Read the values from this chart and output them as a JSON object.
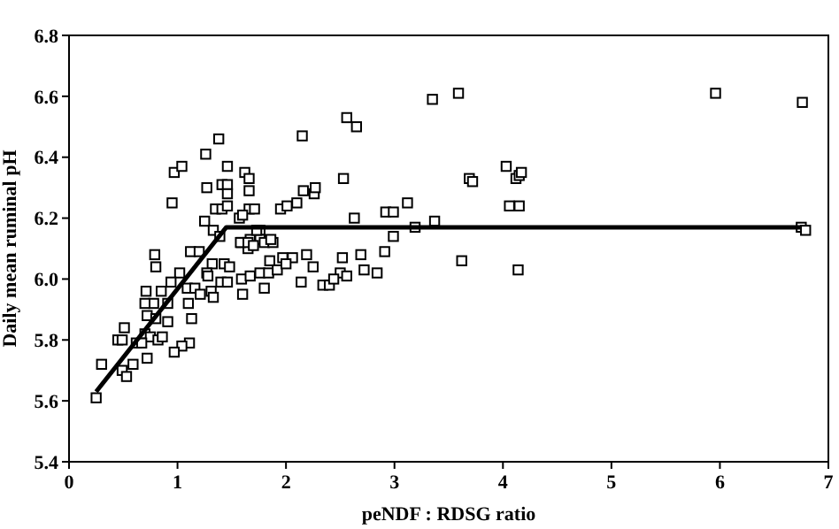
{
  "chart_data": {
    "type": "scatter",
    "xlabel": "peNDF : RDSG ratio",
    "ylabel": "Daily mean ruminal pH",
    "xlim": [
      0,
      7
    ],
    "xticks": [
      0,
      1,
      2,
      3,
      4,
      5,
      6,
      7
    ],
    "ylim": [
      5.4,
      6.8
    ],
    "yticks": [
      5.4,
      5.6,
      5.8,
      {
        "value": 6,
        "label": "6.0"
      },
      6.2,
      6.4,
      6.6,
      6.8
    ],
    "grid": false,
    "series": [
      {
        "color": "#000000",
        "marker": "square",
        "x": [
          2.56,
          2.65,
          3.35,
          3.59,
          2.53,
          2.63,
          2.92,
          2.99,
          3.12,
          3.19,
          3.37,
          2.99,
          2.52,
          2.69,
          2.91,
          2.5,
          2.56,
          2.72,
          2.84,
          3.62,
          4.14,
          3.69,
          3.72,
          4.03,
          4.12,
          4.15,
          4.17,
          4.06,
          4.15,
          5.96,
          6.76,
          6.75,
          6.79,
          1.38,
          2.15,
          1.26,
          0.97,
          1.04,
          1.46,
          1.27,
          1.41,
          1.46,
          1.46,
          1.62,
          1.66,
          1.66,
          0.95,
          1.35,
          1.41,
          1.46,
          1.25,
          1.66,
          1.71,
          1.57,
          1.6,
          1.95,
          2.01,
          2.1,
          2.16,
          2.26,
          2.27,
          1.76,
          1.33,
          1.39,
          1.76,
          1.8,
          1.88,
          1.67,
          1.59,
          1.65,
          1.12,
          1.2,
          1.32,
          1.43,
          1.85,
          1.97,
          2.06,
          2.19,
          1.73,
          1.58,
          1.65,
          1.7,
          1.86,
          1.27,
          1.28,
          1.48,
          1.4,
          1.46,
          1.59,
          1.67,
          1.76,
          1.84,
          1.92,
          2.0,
          2.14,
          2.25,
          2.34,
          2.4,
          2.44,
          1.6,
          1.8,
          1.02,
          1.09,
          1.16,
          1.21,
          1.31,
          1.33,
          0.94,
          0.71,
          0.85,
          0.78,
          0.7,
          0.91,
          1.1,
          0.72,
          0.8,
          1.13,
          0.91,
          0.51,
          0.7,
          0.75,
          0.62,
          0.67,
          0.82,
          0.86,
          0.45,
          0.49,
          1.11,
          1.04,
          0.97,
          0.72,
          0.3,
          0.49,
          0.59,
          0.53,
          0.25,
          0.8,
          0.79
        ],
        "values": [
          6.53,
          6.5,
          6.59,
          6.61,
          6.33,
          6.2,
          6.22,
          6.22,
          6.25,
          6.17,
          6.19,
          6.14,
          6.07,
          6.08,
          6.09,
          6.02,
          6.01,
          6.03,
          6.02,
          6.06,
          6.03,
          6.33,
          6.32,
          6.37,
          6.33,
          6.34,
          6.35,
          6.24,
          6.24,
          6.61,
          6.58,
          6.17,
          6.16,
          6.46,
          6.47,
          6.41,
          6.35,
          6.37,
          6.37,
          6.3,
          6.31,
          6.31,
          6.28,
          6.35,
          6.33,
          6.29,
          6.25,
          6.23,
          6.23,
          6.24,
          6.19,
          6.23,
          6.23,
          6.2,
          6.21,
          6.23,
          6.24,
          6.25,
          6.29,
          6.28,
          6.3,
          6.16,
          6.16,
          6.14,
          6.13,
          6.12,
          6.12,
          6.13,
          6.12,
          6.1,
          6.09,
          6.09,
          6.05,
          6.05,
          6.06,
          6.07,
          6.07,
          6.08,
          6.16,
          6.12,
          6.12,
          6.11,
          6.13,
          6.02,
          6.01,
          6.04,
          5.99,
          5.99,
          6.0,
          6.01,
          6.02,
          6.02,
          6.03,
          6.05,
          5.99,
          6.04,
          5.98,
          5.98,
          6.0,
          5.95,
          5.97,
          6.02,
          5.97,
          5.97,
          5.95,
          5.96,
          5.94,
          5.99,
          5.96,
          5.96,
          5.92,
          5.92,
          5.92,
          5.92,
          5.88,
          5.87,
          5.87,
          5.86,
          5.84,
          5.82,
          5.81,
          5.79,
          5.79,
          5.8,
          5.81,
          5.8,
          5.8,
          5.79,
          5.78,
          5.76,
          5.74,
          5.72,
          5.7,
          5.72,
          5.68,
          5.61,
          6.04,
          6.08
        ]
      },
      {
        "type": "line",
        "color": "#000000",
        "marker": "none",
        "line_style": "solid",
        "x": [
          0.25,
          1.45,
          6.75
        ],
        "values": [
          5.63,
          6.17,
          6.17
        ]
      }
    ]
  }
}
